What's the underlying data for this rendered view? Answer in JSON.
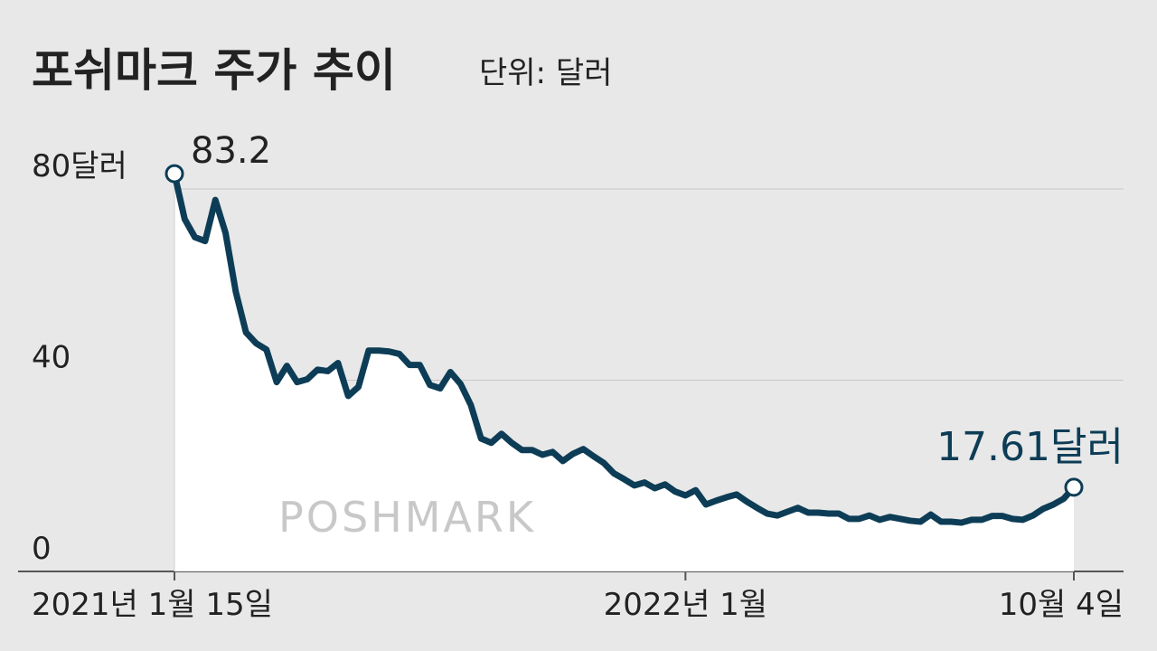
{
  "chart_data": {
    "type": "line",
    "title": "포쉬마크 주가 추이",
    "subtitle": "단위: 달러",
    "watermark": "POSHMARK",
    "categories": [
      "2021년 1월 15일",
      null,
      null,
      null,
      null,
      null,
      null,
      null,
      null,
      null,
      null,
      null,
      null,
      null,
      null,
      null,
      null,
      null,
      null,
      null,
      null,
      null,
      null,
      null,
      null,
      null,
      null,
      null,
      null,
      null,
      null,
      null,
      null,
      null,
      null,
      null,
      null,
      null,
      null,
      null,
      null,
      null,
      null,
      null,
      null,
      null,
      null,
      null,
      null,
      null,
      "2022년 1월",
      null,
      null,
      null,
      null,
      null,
      null,
      null,
      null,
      null,
      null,
      null,
      null,
      null,
      null,
      null,
      null,
      null,
      null,
      null,
      null,
      null,
      null,
      null,
      null,
      null,
      null,
      null,
      null,
      null,
      null,
      null,
      null,
      null,
      null,
      null,
      null,
      null,
      "10월 4일"
    ],
    "values": [
      83.2,
      73.7,
      69.9,
      69.1,
      77.7,
      70.8,
      58.5,
      50,
      47.7,
      46.4,
      39.6,
      43,
      39.6,
      40.2,
      42.2,
      41.9,
      43.6,
      36.7,
      38.6,
      46.2,
      46.2,
      46,
      45.5,
      43.2,
      43.2,
      39,
      38.3,
      41.7,
      39.2,
      34.8,
      27.8,
      26.9,
      28.8,
      26.9,
      25.4,
      25.4,
      24.4,
      25,
      23.1,
      24.6,
      25.6,
      24.1,
      22.7,
      20.5,
      19.3,
      18,
      18.6,
      17.4,
      18.2,
      16.7,
      15.9,
      17,
      14,
      14.8,
      15.5,
      16.1,
      14.6,
      13.3,
      12.1,
      11.7,
      12.5,
      13.3,
      12.3,
      12.3,
      12.1,
      12.1,
      11,
      11,
      11.7,
      10.8,
      11.4,
      11,
      10.6,
      10.4,
      11.9,
      10.4,
      10.4,
      10.2,
      10.8,
      10.8,
      11.6,
      11.6,
      11,
      10.8,
      11.7,
      13.1,
      14,
      15.2,
      17.61
    ],
    "value_labels": [
      "83.2",
      null,
      null,
      null,
      null,
      null,
      null,
      null,
      null,
      null,
      null,
      null,
      null,
      null,
      null,
      null,
      null,
      null,
      null,
      null,
      null,
      null,
      null,
      null,
      null,
      null,
      null,
      null,
      null,
      null,
      null,
      null,
      null,
      null,
      null,
      null,
      null,
      null,
      null,
      null,
      null,
      null,
      null,
      null,
      null,
      null,
      null,
      null,
      null,
      null,
      null,
      null,
      null,
      null,
      null,
      null,
      null,
      null,
      null,
      null,
      null,
      null,
      null,
      null,
      null,
      null,
      null,
      null,
      null,
      null,
      null,
      null,
      null,
      null,
      null,
      null,
      null,
      null,
      null,
      null,
      null,
      null,
      null,
      null,
      null,
      null,
      null,
      null,
      "17.61달러"
    ],
    "color": "#0d3d56",
    "ylim": [
      0,
      80
    ],
    "yticks": [
      0,
      40,
      {
        "value": 80,
        "label": "80달러"
      }
    ],
    "grid": true
  }
}
